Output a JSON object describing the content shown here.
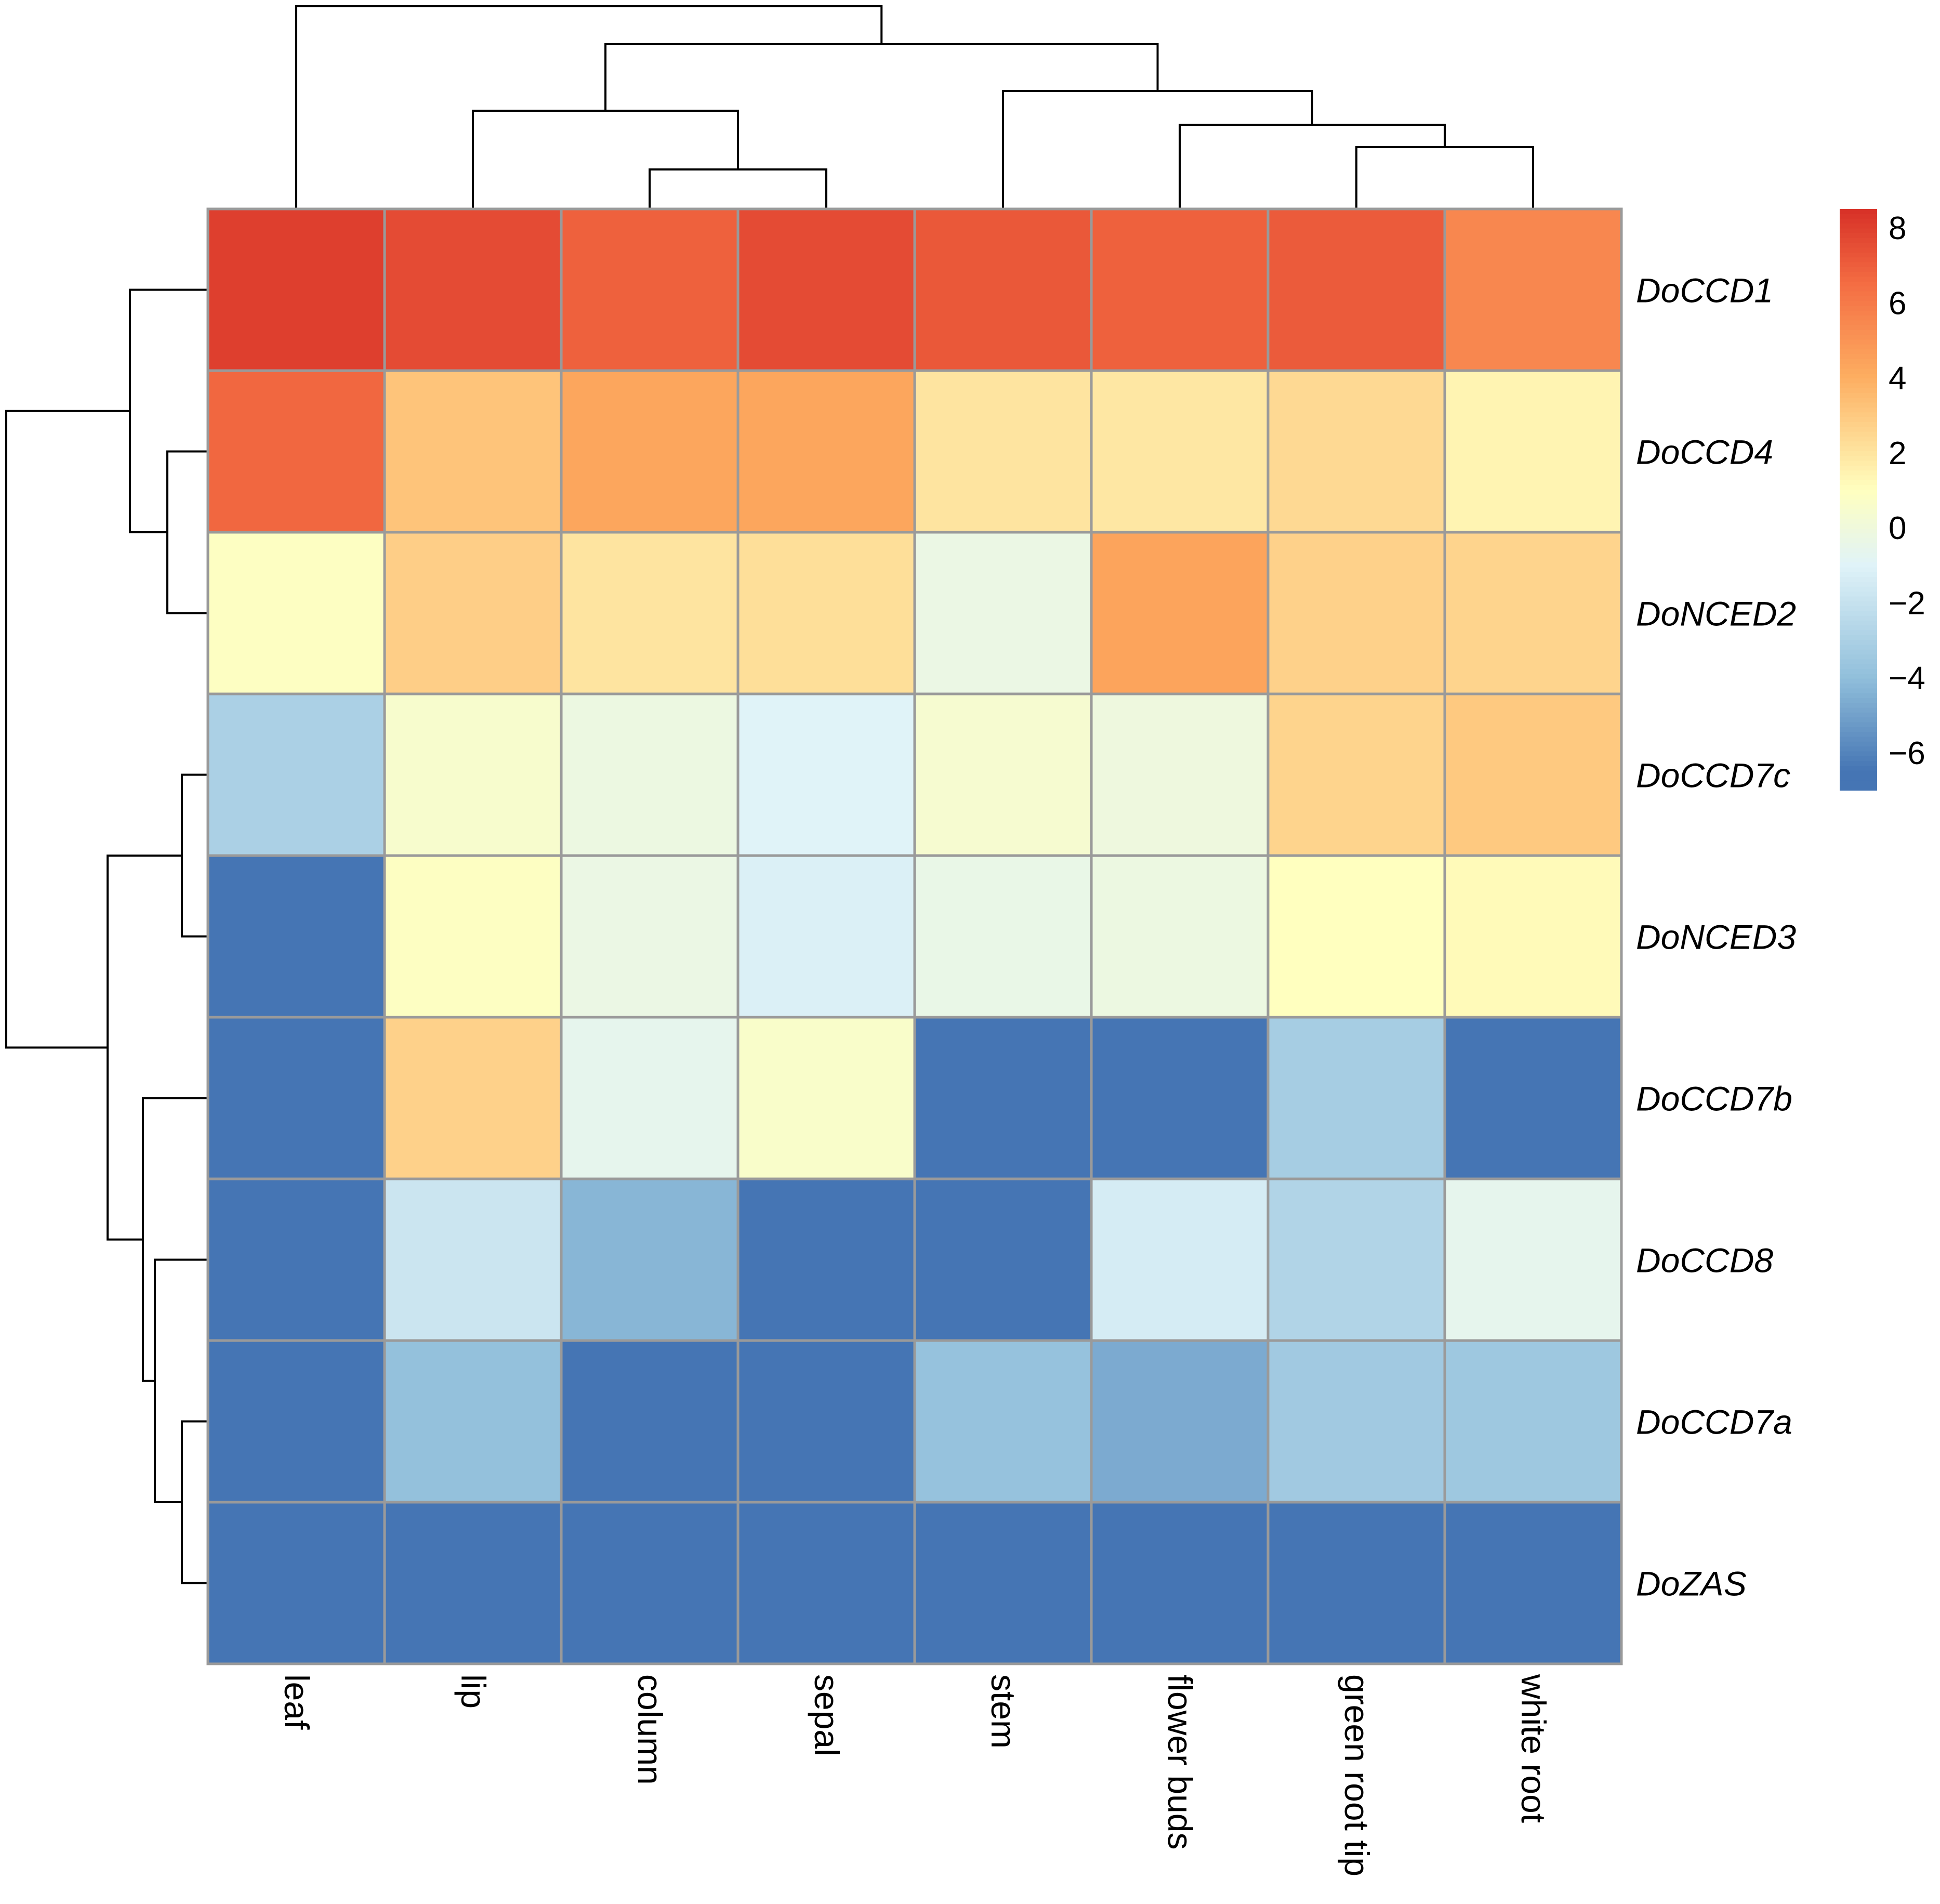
{
  "chart_data": {
    "type": "heatmap",
    "title": "",
    "rows": [
      "DoCCD1",
      "DoCCD4",
      "DoNCED2",
      "DoCCD7c",
      "DoNCED3",
      "DoCCD7b",
      "DoCCD8",
      "DoCCD7a",
      "DoZAS"
    ],
    "columns": [
      "leaf",
      "lip",
      "column",
      "sepal",
      "stem",
      "flower buds",
      "green root tip",
      "white root"
    ],
    "values": [
      [
        8.0,
        7.6,
        6.9,
        7.6,
        7.2,
        6.9,
        7.1,
        5.5
      ],
      [
        6.7,
        3.2,
        4.3,
        4.3,
        2.0,
        1.9,
        2.4,
        1.4
      ],
      [
        0.9,
        2.8,
        2.0,
        2.2,
        -0.3,
        4.4,
        2.7,
        2.6
      ],
      [
        -3.0,
        0.5,
        -0.2,
        -1.0,
        0.4,
        -0.1,
        2.6,
        3.0
      ],
      [
        -6.5,
        0.9,
        -0.3,
        -1.2,
        -0.4,
        -0.2,
        1.0,
        1.2
      ],
      [
        -6.5,
        2.7,
        -0.6,
        0.6,
        -6.5,
        -6.5,
        -3.2,
        -6.5
      ],
      [
        -6.5,
        -1.8,
        -4.3,
        -6.5,
        -6.5,
        -1.4,
        -2.8,
        -0.6
      ],
      [
        -6.5,
        -3.9,
        -6.5,
        -6.5,
        -3.8,
        -4.7,
        -3.4,
        -3.5
      ],
      [
        -6.5,
        -6.5,
        -6.5,
        -6.5,
        -6.5,
        -6.5,
        -6.5,
        -6.5
      ]
    ],
    "color_scale": {
      "min": -7,
      "max": 8.5,
      "stops": [
        {
          "value": -6.5,
          "color": "#4575b4"
        },
        {
          "value": -4.0,
          "color": "#91bfdb"
        },
        {
          "value": -1.0,
          "color": "#e0f3f8"
        },
        {
          "value": 1.0,
          "color": "#ffffbf"
        },
        {
          "value": 4.0,
          "color": "#fdae61"
        },
        {
          "value": 6.5,
          "color": "#f46d43"
        },
        {
          "value": 8.5,
          "color": "#d73027"
        }
      ]
    },
    "legend": {
      "position": "top-right",
      "ticks": [
        "8",
        "6",
        "4",
        "2",
        "0",
        "−2",
        "−4",
        "−6"
      ],
      "tick_values": [
        8,
        6,
        4,
        2,
        0,
        -2,
        -4,
        -6
      ]
    },
    "cell_border_color": "#9a9a9a",
    "row_dendrogram": true,
    "column_dendrogram": true
  }
}
